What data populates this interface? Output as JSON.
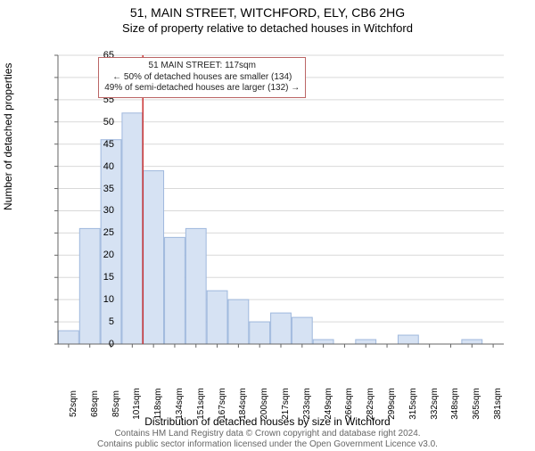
{
  "title": "51, MAIN STREET, WITCHFORD, ELY, CB6 2HG",
  "subtitle": "Size of property relative to detached houses in Witchford",
  "ylabel": "Number of detached properties",
  "xlabel": "Distribution of detached houses by size in Witchford",
  "footer_line1": "Contains HM Land Registry data © Crown copyright and database right 2024.",
  "footer_line2": "Contains public sector information licensed under the Open Government Licence v3.0.",
  "chart": {
    "type": "histogram",
    "background_color": "#ffffff",
    "grid_color": "#d9d9d9",
    "axis_color": "#666666",
    "bar_fill": "#d6e2f3",
    "bar_stroke": "#9fb8dd",
    "bar_stroke_width": 1,
    "ylim": [
      0,
      65
    ],
    "ytick_step": 5,
    "x_categories": [
      "52sqm",
      "68sqm",
      "85sqm",
      "101sqm",
      "118sqm",
      "134sqm",
      "151sqm",
      "167sqm",
      "184sqm",
      "200sqm",
      "217sqm",
      "233sqm",
      "249sqm",
      "266sqm",
      "282sqm",
      "299sqm",
      "315sqm",
      "332sqm",
      "348sqm",
      "365sqm",
      "381sqm"
    ],
    "values": [
      3,
      26,
      46,
      52,
      39,
      24,
      26,
      12,
      10,
      5,
      7,
      6,
      1,
      0,
      1,
      0,
      2,
      0,
      0,
      1,
      0
    ],
    "marker": {
      "x_index": 4,
      "line_color": "#cc3333",
      "line_width": 1.5
    },
    "callout": {
      "line1": "51 MAIN STREET: 117sqm",
      "line2": "← 50% of detached houses are smaller (134)",
      "line3": "49% of semi-detached houses are larger (132) →",
      "border_color": "#bb6666",
      "text_color": "#222222"
    },
    "font_size_ticks": 11,
    "font_size_labels": 12,
    "font_size_title": 14,
    "font_size_subtitle": 13
  }
}
